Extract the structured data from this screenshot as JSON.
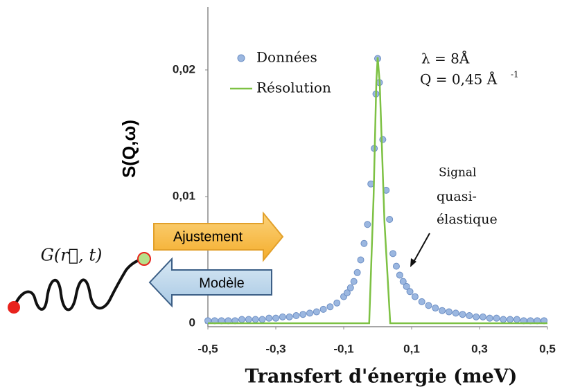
{
  "chart_data": {
    "type": "scatter",
    "xlabel": "Transfert d'énergie (meV)",
    "ylabel": "S(Q,ω)",
    "xlim": [
      -0.5,
      0.5
    ],
    "ylim": [
      0,
      0.025
    ],
    "xticks": [
      {
        "value": -0.5,
        "label": "-0,5"
      },
      {
        "value": -0.3,
        "label": "-0,3"
      },
      {
        "value": -0.1,
        "label": "-0,1"
      },
      {
        "value": 0.1,
        "label": "0,1"
      },
      {
        "value": 0.3,
        "label": "0,3"
      },
      {
        "value": 0.5,
        "label": "0,5"
      }
    ],
    "yticks": [
      0,
      {
        "value": 0.01,
        "label": "0,01"
      },
      {
        "value": 0.02,
        "label": "0,02"
      }
    ],
    "legend": "upper left",
    "series": [
      {
        "name": "Données",
        "color": "#9bb7e0",
        "marker": "circle",
        "x": [
          -0.5,
          -0.48,
          -0.46,
          -0.44,
          -0.42,
          -0.4,
          -0.38,
          -0.36,
          -0.34,
          -0.32,
          -0.3,
          -0.28,
          -0.26,
          -0.24,
          -0.22,
          -0.2,
          -0.18,
          -0.16,
          -0.14,
          -0.12,
          -0.1,
          -0.09,
          -0.08,
          -0.07,
          -0.06,
          -0.05,
          -0.04,
          -0.03,
          -0.02,
          -0.01,
          -0.005,
          0,
          0.005,
          0.015,
          0.025,
          0.035,
          0.045,
          0.055,
          0.065,
          0.075,
          0.085,
          0.095,
          0.11,
          0.13,
          0.15,
          0.17,
          0.19,
          0.21,
          0.23,
          0.25,
          0.27,
          0.29,
          0.31,
          0.33,
          0.35,
          0.37,
          0.39,
          0.41,
          0.43,
          0.45,
          0.47,
          0.49
        ],
        "values": [
          0.0002,
          0.0002,
          0.0002,
          0.0002,
          0.0002,
          0.0003,
          0.0003,
          0.0003,
          0.0003,
          0.0004,
          0.0004,
          0.0005,
          0.0005,
          0.0006,
          0.0007,
          0.0008,
          0.0009,
          0.0011,
          0.0013,
          0.0016,
          0.0021,
          0.0024,
          0.0028,
          0.0033,
          0.004,
          0.005,
          0.0063,
          0.0078,
          0.011,
          0.0138,
          0.0181,
          0.0209,
          0.019,
          0.0145,
          0.0105,
          0.0082,
          0.0055,
          0.0045,
          0.0038,
          0.0033,
          0.0029,
          0.0025,
          0.0021,
          0.0017,
          0.0014,
          0.0012,
          0.001,
          0.0009,
          0.0008,
          0.0007,
          0.0006,
          0.0005,
          0.0005,
          0.0004,
          0.0004,
          0.0003,
          0.0003,
          0.0003,
          0.0002,
          0.0002,
          0.0002,
          0.0002
        ]
      },
      {
        "name": "Résolution",
        "color": "#7dc143",
        "marker": "line",
        "x": [
          -0.5,
          -0.025,
          -0.012,
          -0.004,
          0,
          0.006,
          0.02,
          0.037,
          0.5
        ],
        "values": [
          0,
          0,
          0.01,
          0.019,
          0.021,
          0.019,
          0.008,
          0,
          0
        ]
      }
    ],
    "annotations": {
      "lambda": "λ   = 8Å",
      "q": "Q = 0,45 Å",
      "q_exponent": "-1",
      "signal": [
        "Signal",
        "quasi-",
        "élastique"
      ],
      "green_function": "G(r⃗, t)",
      "fit_arrow": "Ajustement",
      "model_arrow": "Modèle"
    }
  }
}
